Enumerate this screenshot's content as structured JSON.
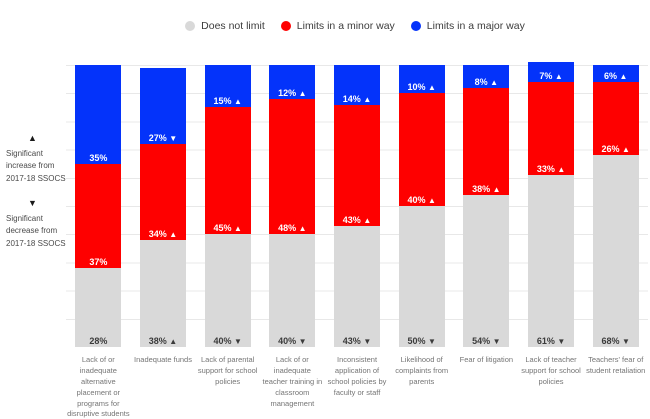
{
  "legend": {
    "items": [
      {
        "label": "Does not limit",
        "color": "#d9d9d9"
      },
      {
        "label": "Limits in a minor way",
        "color": "#fe0000"
      },
      {
        "label": "Limits in a major way",
        "color": "#0433fa"
      }
    ]
  },
  "annotations": {
    "increase_symbol": "▲",
    "increase_text": "Significant increase from 2017-18 SSOCS",
    "decrease_symbol": "▼",
    "decrease_text": "Significant decrease from 2017-18 SSOCS"
  },
  "chart_data": {
    "type": "bar",
    "variant": "stacked-100-percent",
    "title": "",
    "xlabel": "",
    "ylabel": "",
    "unit": "%",
    "ylim": [
      0,
      100
    ],
    "grid": true,
    "grid_step": 10,
    "legend_position": "top",
    "trend_up_symbol": "▲",
    "trend_down_symbol": "▼",
    "categories": [
      "Lack of or inadequate alternative placement or programs for disruptive students",
      "Inadequate funds",
      "Lack of parental support for school policies",
      "Lack of or inadequate teacher training in classroom management",
      "Inconsistent application of school policies by faculty or staff",
      "Likelihood of complaints from parents",
      "Fear of litigation",
      "Lack of teacher support for school policies",
      "Teachers' fear of student retaliation"
    ],
    "series": [
      {
        "name": "Does not limit",
        "color": "#d9d9d9",
        "label_color": "#3b3b3b",
        "values": [
          28,
          38,
          40,
          40,
          43,
          50,
          54,
          61,
          68
        ],
        "trends": [
          "",
          "up",
          "down",
          "down",
          "down",
          "down",
          "down",
          "down",
          "down"
        ]
      },
      {
        "name": "Limits in a minor way",
        "color": "#fe0000",
        "label_color": "#ffffff",
        "values": [
          37,
          34,
          45,
          48,
          43,
          40,
          38,
          33,
          26
        ],
        "trends": [
          "",
          "up",
          "up",
          "up",
          "up",
          "up",
          "up",
          "up",
          "up"
        ]
      },
      {
        "name": "Limits in a major way",
        "color": "#0433fa",
        "label_color": "#ffffff",
        "values": [
          35,
          27,
          15,
          12,
          14,
          10,
          8,
          7,
          6
        ],
        "trends": [
          "",
          "down",
          "up",
          "up",
          "up",
          "up",
          "up",
          "up",
          "up"
        ]
      }
    ]
  }
}
